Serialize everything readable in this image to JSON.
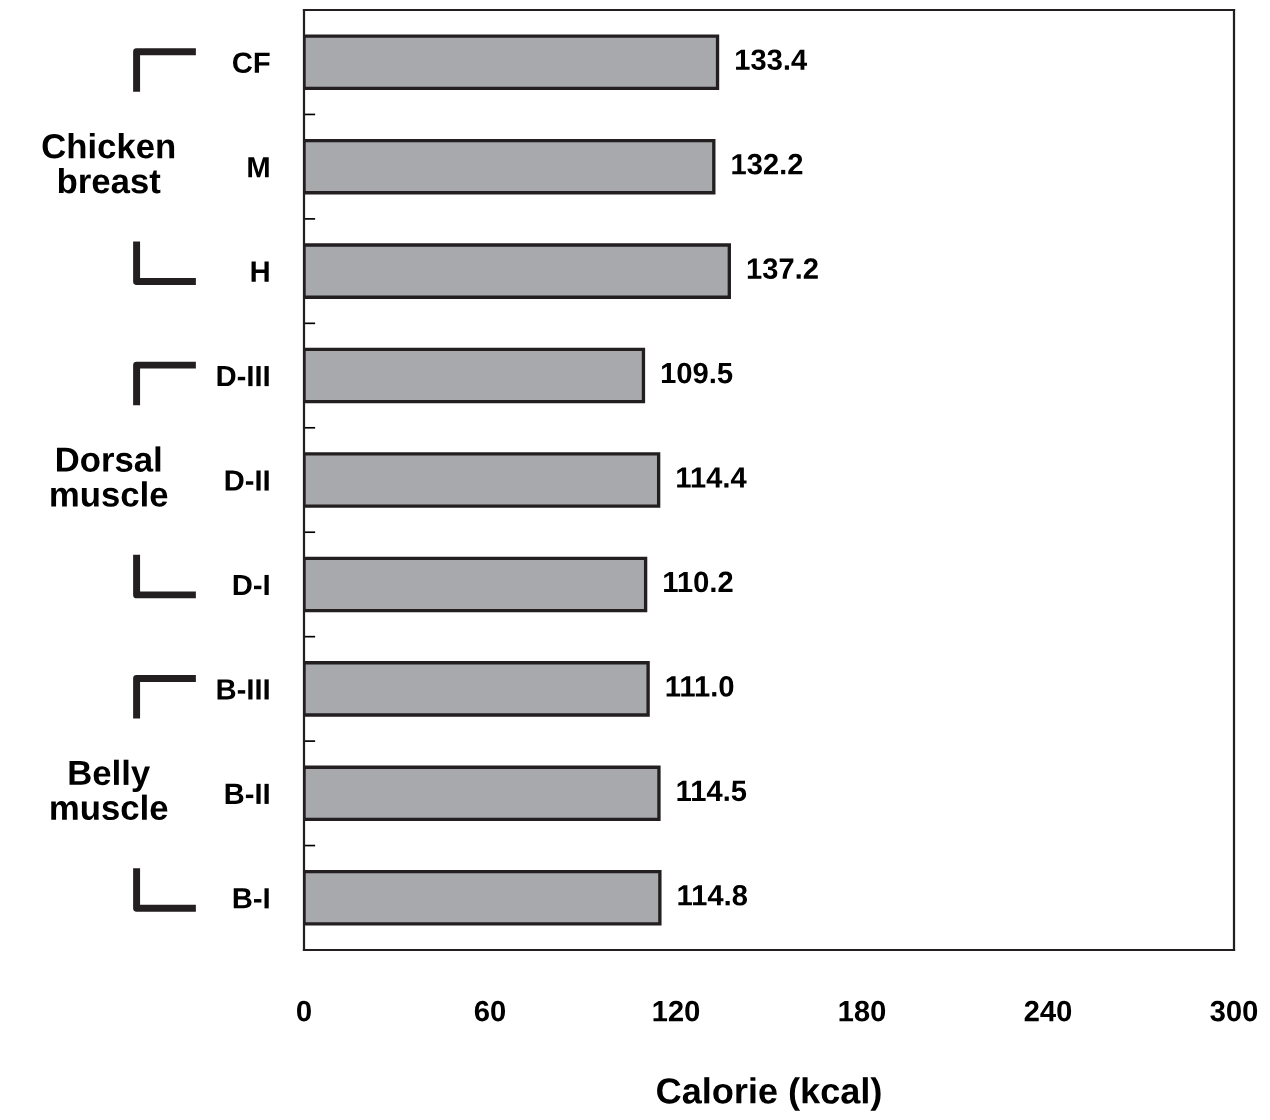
{
  "chart_data": {
    "type": "bar",
    "orientation": "horizontal",
    "xlabel": "Calorie (kcal)",
    "categories": [
      "CF",
      "M",
      "H",
      "D-III",
      "D-II",
      "D-I",
      "B-III",
      "B-II",
      "B-I"
    ],
    "values": [
      133.4,
      132.2,
      137.2,
      109.5,
      114.4,
      110.2,
      111.0,
      114.5,
      114.8
    ],
    "color": "#a7a9ac",
    "value_labels": [
      "133.4",
      "132.2",
      "137.2",
      "109.5",
      "114.4",
      "110.2",
      "111.0",
      "114.5",
      "114.8"
    ],
    "xlim": [
      0,
      300
    ],
    "xticks": [
      0,
      60,
      120,
      180,
      240,
      300
    ],
    "grid": false,
    "annotations": [
      "Chicken\nbreast",
      "Dorsal\nmuscle",
      "Belly\nmuscle"
    ]
  }
}
